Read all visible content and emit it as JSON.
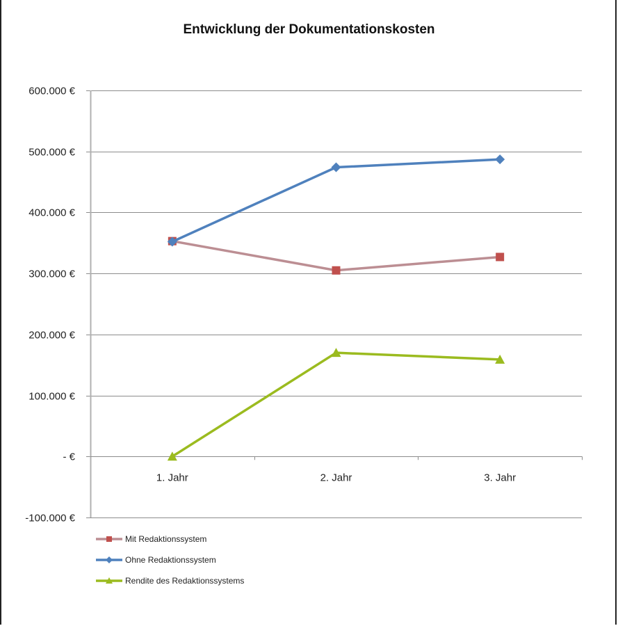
{
  "chart_data": {
    "type": "line",
    "title": "Entwicklung der Dokumentationskosten",
    "xlabel": "",
    "ylabel": "",
    "categories": [
      "1. Jahr",
      "2. Jahr",
      "3. Jahr"
    ],
    "yticks": [
      -100000,
      0,
      100000,
      200000,
      300000,
      400000,
      500000,
      600000
    ],
    "ytick_labels": [
      "-100.000 €",
      "-   €",
      "100.000 €",
      "200.000 €",
      "300.000 €",
      "400.000 €",
      "500.000 €",
      "600.000 €"
    ],
    "ylim": [
      -100000,
      600000
    ],
    "grid": true,
    "legend_position": "bottom-left",
    "series": [
      {
        "name": "Mit Redaktionssystem",
        "color": "#C0504D",
        "line_color": "#BC8E93",
        "marker": "square",
        "values": [
          353000,
          305000,
          327000
        ]
      },
      {
        "name": "Ohne Redaktionssystem",
        "color": "#4F81BD",
        "line_color": "#4F81BD",
        "marker": "diamond",
        "values": [
          352000,
          474000,
          487000
        ]
      },
      {
        "name": "Rendite des Redaktionssystems",
        "color": "#9BBB1F",
        "line_color": "#9BBB1F",
        "marker": "triangle",
        "values": [
          0,
          170000,
          159000
        ]
      }
    ]
  }
}
